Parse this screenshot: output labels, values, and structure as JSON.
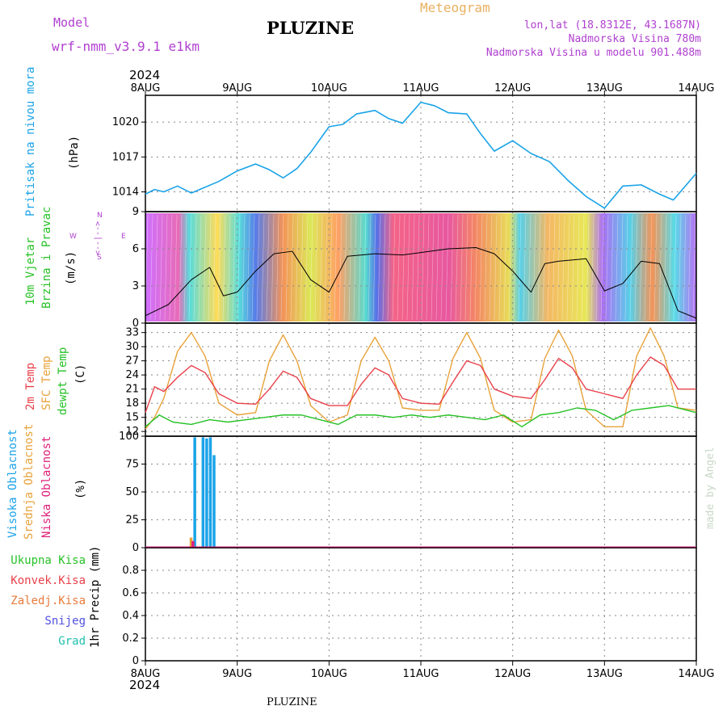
{
  "header": {
    "model_label": "Model",
    "model_name": "wrf-nmm_v3.9.1  e1km",
    "station": "PLUZINE",
    "product": "Meteogram",
    "lonlat": "lon,lat (18.8312E, 43.1687N)",
    "altitude": "Nadmorska Visina 780m",
    "model_altitude": "Nadmorska Visina u modelu 901.488m",
    "year_top": "2024",
    "year_bottom": "2024",
    "footer_station": "PLUZINE",
    "credit": "made by Angel"
  },
  "colors": {
    "pressure": "#1aa3e8",
    "temp2m": "#e8404a",
    "sfc_temp": "#e8a23a",
    "dewpoint": "#27c227",
    "high_cloud": "#1aa3e8",
    "mid_cloud": "#e8a23a",
    "low_cloud": "#e0207a",
    "model_purple": "#b040d0",
    "meteogram_orange": "#e8b060"
  },
  "dates": [
    "8AUG",
    "9AUG",
    "10AUG",
    "11AUG",
    "12AUG",
    "13AUG",
    "14AUG"
  ],
  "panel_labels": {
    "pressure": {
      "title": "Pritisak na nivou mora",
      "unit": "(hPa)"
    },
    "wind": {
      "title1": "10m Vjetar",
      "title2": "Brzina i Pravac",
      "unit": "(m/s)",
      "compass_n": "N",
      "compass_s": "S",
      "compass_e": "E",
      "compass_w": "W",
      "compass_arrows": "<--|-->"
    },
    "temp": {
      "l1": "2m Temp",
      "l2": "SFC Temp",
      "l3": "dewpt Temp",
      "unit": "(C)"
    },
    "cloud": {
      "l1": "Visoka Oblacnost",
      "l2": "Srednja Oblacnost",
      "l3": "Niska Oblacnost",
      "unit": "(%)"
    },
    "precip": {
      "l1": "Ukupna Kisa",
      "l2": "Konvek.Kisa",
      "l3": "Zaledj.Kisa",
      "l4": "Snijeg",
      "l5": "Grad",
      "unit": "1hr Precip (mm)"
    }
  },
  "chart_data": [
    {
      "type": "line",
      "name": "pressure",
      "x_unit": "days from 8AUG 00",
      "ylim": [
        1012.3,
        1022.3
      ],
      "yticks": [
        "1014",
        "1017",
        "1020"
      ],
      "series": [
        {
          "x": [
            0,
            0.1,
            0.2,
            0.35,
            0.5,
            0.65,
            0.8,
            1.0,
            1.2,
            1.35,
            1.5,
            1.65,
            1.8,
            2.0,
            2.15,
            2.3,
            2.5,
            2.65,
            2.8,
            3.0,
            3.15,
            3.3,
            3.5,
            3.65,
            3.8,
            4.0,
            4.2,
            4.4,
            4.6,
            4.8,
            5.0,
            5.2,
            5.4,
            5.6,
            5.75,
            6.0
          ],
          "y": [
            1013.8,
            1014.2,
            1014.0,
            1014.5,
            1013.9,
            1014.4,
            1014.9,
            1015.8,
            1016.4,
            1015.9,
            1015.2,
            1016.0,
            1017.4,
            1019.6,
            1019.8,
            1020.7,
            1021.0,
            1020.3,
            1019.9,
            1021.7,
            1021.4,
            1020.8,
            1020.7,
            1019.0,
            1017.5,
            1018.4,
            1017.3,
            1016.6,
            1015.0,
            1013.6,
            1012.6,
            1014.5,
            1014.6,
            1013.8,
            1013.3,
            1015.6
          ]
        }
      ]
    },
    {
      "type": "line",
      "name": "wind speed",
      "ylim": [
        0,
        9
      ],
      "yticks": [
        "0",
        "3",
        "6",
        "9"
      ],
      "series": [
        {
          "x": [
            0,
            0.25,
            0.5,
            0.7,
            0.85,
            1.0,
            1.2,
            1.4,
            1.6,
            1.8,
            2.0,
            2.2,
            2.5,
            2.8,
            3.0,
            3.3,
            3.6,
            3.8,
            4.0,
            4.2,
            4.35,
            4.5,
            4.8,
            5.0,
            5.2,
            5.4,
            5.6,
            5.8,
            6.0
          ],
          "y": [
            0.6,
            1.5,
            3.5,
            4.5,
            2.2,
            2.5,
            4.2,
            5.6,
            5.8,
            3.5,
            2.5,
            5.4,
            5.6,
            5.5,
            5.7,
            6.0,
            6.1,
            5.6,
            4.2,
            2.5,
            4.8,
            5.0,
            5.2,
            2.6,
            3.2,
            5.0,
            4.8,
            1.0,
            0.4
          ]
        }
      ]
    },
    {
      "type": "line",
      "name": "temperature",
      "ylim": [
        11,
        35
      ],
      "yticks": [
        "12",
        "15",
        "18",
        "21",
        "24",
        "27",
        "30",
        "33"
      ],
      "series": [
        {
          "name": "2m Temp",
          "x": [
            0,
            0.1,
            0.2,
            0.35,
            0.5,
            0.65,
            0.8,
            1.0,
            1.2,
            1.35,
            1.5,
            1.65,
            1.8,
            2.0,
            2.2,
            2.35,
            2.5,
            2.65,
            2.8,
            3.0,
            3.2,
            3.35,
            3.5,
            3.65,
            3.8,
            4.0,
            4.2,
            4.35,
            4.5,
            4.65,
            4.8,
            5.0,
            5.2,
            5.35,
            5.5,
            5.65,
            5.8,
            6.0
          ],
          "y": [
            16.0,
            21.5,
            20.5,
            23.5,
            26.0,
            24.5,
            20.0,
            18.0,
            17.8,
            21.0,
            24.8,
            23.5,
            19.0,
            17.5,
            17.5,
            22.0,
            25.5,
            24.0,
            19.0,
            18.0,
            17.8,
            22.5,
            27.0,
            26.0,
            21.0,
            19.5,
            19.0,
            23.0,
            27.5,
            25.5,
            21.0,
            20.0,
            19.0,
            24.0,
            27.8,
            26.0,
            21.0,
            21.0
          ]
        },
        {
          "name": "SFC Temp",
          "x": [
            0,
            0.1,
            0.2,
            0.35,
            0.5,
            0.65,
            0.8,
            1.0,
            1.2,
            1.35,
            1.5,
            1.65,
            1.8,
            2.0,
            2.2,
            2.35,
            2.5,
            2.65,
            2.8,
            3.0,
            3.2,
            3.35,
            3.5,
            3.65,
            3.8,
            4.0,
            4.2,
            4.35,
            4.5,
            4.65,
            4.8,
            5.0,
            5.2,
            5.35,
            5.5,
            5.65,
            5.8,
            6.0
          ],
          "y": [
            12.5,
            15.0,
            19.0,
            29.0,
            33.0,
            28.0,
            18.0,
            15.5,
            16.0,
            27.0,
            32.5,
            27.0,
            17.5,
            14.0,
            15.5,
            27.0,
            32.0,
            27.0,
            17.0,
            16.5,
            16.5,
            27.5,
            33.0,
            27.5,
            16.5,
            14.0,
            14.5,
            27.5,
            33.5,
            28.0,
            16.5,
            13.0,
            13.0,
            28.0,
            34.0,
            28.0,
            17.0,
            16.5
          ]
        },
        {
          "name": "dewpt Temp",
          "x": [
            0,
            0.15,
            0.3,
            0.5,
            0.7,
            0.9,
            1.1,
            1.3,
            1.5,
            1.7,
            1.9,
            2.1,
            2.3,
            2.5,
            2.7,
            2.9,
            3.1,
            3.3,
            3.5,
            3.7,
            3.9,
            4.1,
            4.3,
            4.5,
            4.7,
            4.9,
            5.1,
            5.3,
            5.5,
            5.7,
            5.9,
            6.0
          ],
          "y": [
            13.0,
            15.5,
            14.0,
            13.5,
            14.5,
            14.0,
            14.5,
            15.0,
            15.5,
            15.5,
            14.5,
            13.5,
            15.5,
            15.5,
            15.0,
            15.5,
            15.0,
            15.5,
            15.0,
            14.5,
            15.5,
            13.0,
            15.5,
            16.0,
            17.0,
            16.5,
            14.5,
            16.5,
            17.0,
            17.5,
            16.5,
            16.0
          ]
        }
      ]
    },
    {
      "type": "bar",
      "name": "cloud cover",
      "ylim": [
        0,
        100
      ],
      "yticks": [
        "0",
        "25",
        "50",
        "75",
        "100"
      ],
      "series": [
        {
          "name": "Visoka Oblacnost",
          "x": [
            0.54,
            0.63,
            0.67,
            0.71,
            0.75
          ],
          "values": [
            99,
            99,
            98,
            99,
            83
          ]
        },
        {
          "name": "Srednja Oblacnost",
          "x": [
            0.5
          ],
          "values": [
            9
          ]
        },
        {
          "name": "Niska Oblacnost",
          "x": [
            0.52
          ],
          "values": [
            6
          ]
        }
      ]
    },
    {
      "type": "bar",
      "name": "1hr precipitation",
      "ylim": [
        0,
        1
      ],
      "yticks": [
        "0",
        "0.2",
        "0.4",
        "0.6",
        "0.8"
      ],
      "series": [
        {
          "name": "Ukupna Kisa",
          "x": [],
          "values": []
        }
      ]
    }
  ]
}
